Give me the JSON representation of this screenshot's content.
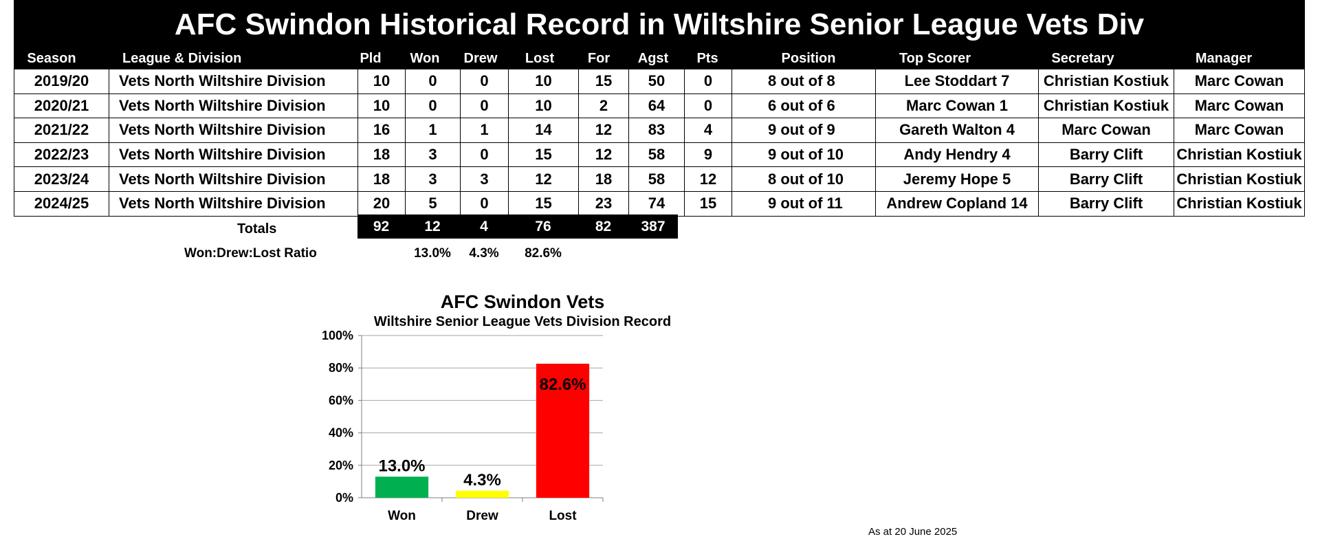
{
  "title": "AFC Swindon Historical Record in Wiltshire Senior League Vets Div",
  "columns": [
    "Season",
    "League & Division",
    "Pld",
    "Won",
    "Drew",
    "Lost",
    "For",
    "Agst",
    "Pts",
    "Position",
    "Top Scorer",
    "Secretary",
    "Manager"
  ],
  "rows": [
    [
      "2019/20",
      "Vets North Wiltshire Division",
      "10",
      "0",
      "0",
      "10",
      "15",
      "50",
      "0",
      "8 out of 8",
      "Lee Stoddart 7",
      "Christian Kostiuk",
      "Marc Cowan"
    ],
    [
      "2020/21",
      "Vets North Wiltshire Division",
      "10",
      "0",
      "0",
      "10",
      "2",
      "64",
      "0",
      "6 out of 6",
      "Marc Cowan 1",
      "Christian Kostiuk",
      "Marc Cowan"
    ],
    [
      "2021/22",
      "Vets North Wiltshire Division",
      "16",
      "1",
      "1",
      "14",
      "12",
      "83",
      "4",
      "9 out of 9",
      "Gareth Walton 4",
      "Marc Cowan",
      "Marc Cowan"
    ],
    [
      "2022/23",
      "Vets North Wiltshire Division",
      "18",
      "3",
      "0",
      "15",
      "12",
      "58",
      "9",
      "9 out of 10",
      "Andy Hendry 4",
      "Barry Clift",
      "Christian Kostiuk"
    ],
    [
      "2023/24",
      "Vets North Wiltshire Division",
      "18",
      "3",
      "3",
      "12",
      "18",
      "58",
      "12",
      "8 out of 10",
      "Jeremy Hope 5",
      "Barry Clift",
      "Christian Kostiuk"
    ],
    [
      "2024/25",
      "Vets North Wiltshire Division",
      "20",
      "5",
      "0",
      "15",
      "23",
      "74",
      "15",
      "9 out of 11",
      "Andrew Copland 14",
      "Barry Clift",
      "Christian Kostiuk"
    ]
  ],
  "totals": {
    "label": "Totals",
    "values": [
      "92",
      "12",
      "4",
      "76",
      "82",
      "387"
    ]
  },
  "ratio": {
    "label": "Won:Drew:Lost Ratio",
    "values": [
      "13.0%",
      "4.3%",
      "82.6%"
    ]
  },
  "footer": "As at 20 June 2025",
  "chart_data": {
    "type": "bar",
    "title": "AFC Swindon Vets",
    "subtitle": "Wiltshire Senior League Vets Division Record",
    "categories": [
      "Won",
      "Drew",
      "Lost"
    ],
    "values": [
      13.0,
      4.3,
      82.6
    ],
    "value_labels": [
      "13.0%",
      "4.3%",
      "82.6%"
    ],
    "colors": [
      "#00b050",
      "#ffff00",
      "#ff0000"
    ],
    "ylim": [
      0,
      100
    ],
    "yticks": [
      "0%",
      "20%",
      "40%",
      "60%",
      "80%",
      "100%"
    ],
    "grid": true,
    "legend": "none"
  }
}
